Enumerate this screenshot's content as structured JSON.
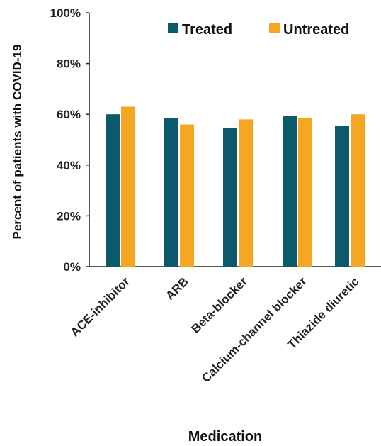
{
  "chart_data": {
    "type": "bar",
    "title": "",
    "xlabel": "Medication",
    "ylabel": "Percent of patients with COVID-19",
    "ylim": [
      0,
      100
    ],
    "yticks": [
      "0%",
      "20%",
      "40%",
      "60%",
      "80%",
      "100%"
    ],
    "ytick_values": [
      0,
      20,
      40,
      60,
      80,
      100
    ],
    "categories": [
      "ACE-inhibitor",
      "ARB",
      "Beta-blocker",
      "Calcium-channel blocker",
      "Thiazide diuretic"
    ],
    "series": [
      {
        "name": "Treated",
        "color": "#0b5a6b",
        "values": [
          60,
          58.5,
          54.5,
          59.5,
          55.5
        ]
      },
      {
        "name": "Untreated",
        "color": "#f5a623",
        "values": [
          63,
          56,
          58,
          58.5,
          60
        ]
      }
    ],
    "grid": false,
    "legend_position": "top-right"
  }
}
